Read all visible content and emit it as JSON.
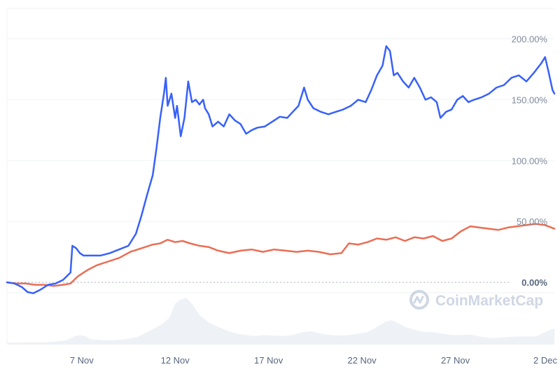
{
  "watermark": {
    "text": "CoinMarketCap",
    "icon": "coinmarketcap-logo-icon"
  },
  "colors": {
    "primary_series": "#3861fb",
    "compare_series": "#ea6e55",
    "volume_fill": "#eef1f6",
    "gridline": "#eff2f5",
    "zero_line": "#a6b0c3"
  },
  "chart_data": {
    "type": "line",
    "xlabel": "",
    "ylabel": "",
    "x_unit": "days",
    "x_ticks": [
      {
        "x": 6.0,
        "label": "7 Nov"
      },
      {
        "x": 11.0,
        "label": "12 Nov"
      },
      {
        "x": 16.0,
        "label": "17 Nov"
      },
      {
        "x": 21.0,
        "label": "22 Nov"
      },
      {
        "x": 26.0,
        "label": "27 Nov"
      },
      {
        "x": 31.0,
        "label": "2 Dec"
      }
    ],
    "y_ticks": [
      {
        "y": 0,
        "label": "0.00%"
      },
      {
        "y": 50,
        "label": "50.00%"
      },
      {
        "y": 100,
        "label": "100.00%"
      },
      {
        "y": 150,
        "label": "150.00%"
      },
      {
        "y": 200,
        "label": "200.00%"
      }
    ],
    "xlim": [
      2.0,
      31.3
    ],
    "ylim": [
      -50,
      225
    ],
    "grid": true,
    "y_axis_side": "right",
    "series": [
      {
        "color": "#3861fb",
        "points": [
          [
            2.0,
            0
          ],
          [
            2.4,
            -1
          ],
          [
            2.8,
            -4
          ],
          [
            3.1,
            -8
          ],
          [
            3.4,
            -9
          ],
          [
            3.8,
            -6
          ],
          [
            4.2,
            -2
          ],
          [
            4.6,
            -1
          ],
          [
            5.0,
            2
          ],
          [
            5.4,
            8
          ],
          [
            5.5,
            30
          ],
          [
            5.7,
            28
          ],
          [
            5.9,
            24
          ],
          [
            6.1,
            22
          ],
          [
            6.5,
            22
          ],
          [
            7.0,
            22
          ],
          [
            7.5,
            24
          ],
          [
            8.0,
            27
          ],
          [
            8.5,
            30
          ],
          [
            8.9,
            40
          ],
          [
            9.2,
            55
          ],
          [
            9.5,
            72
          ],
          [
            9.8,
            88
          ],
          [
            10.0,
            110
          ],
          [
            10.2,
            135
          ],
          [
            10.4,
            155
          ],
          [
            10.5,
            168
          ],
          [
            10.6,
            145
          ],
          [
            10.8,
            155
          ],
          [
            11.0,
            135
          ],
          [
            11.1,
            145
          ],
          [
            11.3,
            120
          ],
          [
            11.5,
            135
          ],
          [
            11.7,
            165
          ],
          [
            11.9,
            148
          ],
          [
            12.1,
            150
          ],
          [
            12.3,
            146
          ],
          [
            12.5,
            150
          ],
          [
            12.6,
            143
          ],
          [
            12.8,
            138
          ],
          [
            13.0,
            128
          ],
          [
            13.3,
            132
          ],
          [
            13.6,
            128
          ],
          [
            13.9,
            138
          ],
          [
            14.2,
            133
          ],
          [
            14.5,
            130
          ],
          [
            14.8,
            122
          ],
          [
            15.1,
            125
          ],
          [
            15.4,
            127
          ],
          [
            15.8,
            128
          ],
          [
            16.2,
            132
          ],
          [
            16.6,
            136
          ],
          [
            17.0,
            135
          ],
          [
            17.3,
            140
          ],
          [
            17.6,
            145
          ],
          [
            17.9,
            160
          ],
          [
            18.1,
            150
          ],
          [
            18.4,
            143
          ],
          [
            18.8,
            140
          ],
          [
            19.2,
            138
          ],
          [
            19.6,
            140
          ],
          [
            20.0,
            142
          ],
          [
            20.4,
            145
          ],
          [
            20.8,
            150
          ],
          [
            21.2,
            148
          ],
          [
            21.5,
            158
          ],
          [
            21.8,
            170
          ],
          [
            22.1,
            178
          ],
          [
            22.3,
            194
          ],
          [
            22.5,
            190
          ],
          [
            22.7,
            170
          ],
          [
            22.9,
            172
          ],
          [
            23.2,
            165
          ],
          [
            23.5,
            160
          ],
          [
            23.8,
            168
          ],
          [
            24.1,
            160
          ],
          [
            24.4,
            150
          ],
          [
            24.7,
            152
          ],
          [
            25.0,
            148
          ],
          [
            25.2,
            135
          ],
          [
            25.5,
            140
          ],
          [
            25.8,
            142
          ],
          [
            26.1,
            150
          ],
          [
            26.4,
            153
          ],
          [
            26.7,
            148
          ],
          [
            27.0,
            150
          ],
          [
            27.4,
            152
          ],
          [
            27.8,
            155
          ],
          [
            28.2,
            160
          ],
          [
            28.6,
            162
          ],
          [
            29.0,
            168
          ],
          [
            29.4,
            170
          ],
          [
            29.8,
            165
          ],
          [
            30.2,
            172
          ],
          [
            30.6,
            180
          ],
          [
            30.8,
            185
          ],
          [
            31.0,
            172
          ],
          [
            31.2,
            158
          ],
          [
            31.3,
            155
          ]
        ]
      },
      {
        "color": "#ea6e55",
        "points": [
          [
            2.0,
            0
          ],
          [
            2.5,
            -1
          ],
          [
            3.0,
            -1
          ],
          [
            3.5,
            -2
          ],
          [
            4.0,
            -2
          ],
          [
            4.5,
            -3
          ],
          [
            5.0,
            -2
          ],
          [
            5.4,
            -1
          ],
          [
            5.8,
            5
          ],
          [
            6.3,
            10
          ],
          [
            6.8,
            14
          ],
          [
            7.4,
            17
          ],
          [
            8.0,
            20
          ],
          [
            8.6,
            25
          ],
          [
            9.2,
            28
          ],
          [
            9.8,
            31
          ],
          [
            10.2,
            32
          ],
          [
            10.6,
            35
          ],
          [
            11.0,
            33
          ],
          [
            11.4,
            34
          ],
          [
            11.8,
            32
          ],
          [
            12.3,
            30
          ],
          [
            12.8,
            29
          ],
          [
            13.3,
            26
          ],
          [
            13.9,
            24
          ],
          [
            14.5,
            26
          ],
          [
            15.1,
            27
          ],
          [
            15.7,
            25
          ],
          [
            16.3,
            27
          ],
          [
            16.9,
            26
          ],
          [
            17.5,
            25
          ],
          [
            18.1,
            26
          ],
          [
            18.7,
            25
          ],
          [
            19.3,
            23
          ],
          [
            19.9,
            24
          ],
          [
            20.3,
            32
          ],
          [
            20.8,
            31
          ],
          [
            21.3,
            33
          ],
          [
            21.8,
            36
          ],
          [
            22.3,
            35
          ],
          [
            22.8,
            37
          ],
          [
            23.3,
            34
          ],
          [
            23.8,
            37
          ],
          [
            24.3,
            36
          ],
          [
            24.8,
            38
          ],
          [
            25.3,
            34
          ],
          [
            25.8,
            36
          ],
          [
            26.3,
            42
          ],
          [
            26.8,
            46
          ],
          [
            27.3,
            45
          ],
          [
            27.8,
            44
          ],
          [
            28.3,
            43
          ],
          [
            28.8,
            45
          ],
          [
            29.3,
            46
          ],
          [
            29.8,
            47
          ],
          [
            30.3,
            48
          ],
          [
            30.8,
            47
          ],
          [
            31.3,
            44
          ]
        ]
      }
    ],
    "volume": [
      [
        2.0,
        4
      ],
      [
        2.5,
        4
      ],
      [
        3.0,
        5
      ],
      [
        3.5,
        5
      ],
      [
        4.0,
        5
      ],
      [
        4.5,
        6
      ],
      [
        5.0,
        8
      ],
      [
        5.3,
        11
      ],
      [
        5.6,
        17
      ],
      [
        5.9,
        20
      ],
      [
        6.2,
        17
      ],
      [
        6.5,
        11
      ],
      [
        7.0,
        10
      ],
      [
        7.5,
        9
      ],
      [
        8.0,
        10
      ],
      [
        8.5,
        12
      ],
      [
        9.0,
        16
      ],
      [
        9.5,
        26
      ],
      [
        10.0,
        36
      ],
      [
        10.4,
        46
      ],
      [
        10.7,
        57
      ],
      [
        11.0,
        86
      ],
      [
        11.3,
        95
      ],
      [
        11.6,
        98
      ],
      [
        11.9,
        86
      ],
      [
        12.3,
        63
      ],
      [
        12.8,
        46
      ],
      [
        13.3,
        37
      ],
      [
        13.8,
        29
      ],
      [
        14.3,
        23
      ],
      [
        14.8,
        20
      ],
      [
        15.3,
        18
      ],
      [
        15.8,
        20
      ],
      [
        16.3,
        19
      ],
      [
        16.8,
        18
      ],
      [
        17.3,
        20
      ],
      [
        17.8,
        26
      ],
      [
        18.3,
        28
      ],
      [
        18.8,
        23
      ],
      [
        19.3,
        20
      ],
      [
        19.8,
        19
      ],
      [
        20.3,
        20
      ],
      [
        20.8,
        23
      ],
      [
        21.3,
        26
      ],
      [
        21.8,
        37
      ],
      [
        22.3,
        49
      ],
      [
        22.6,
        51
      ],
      [
        22.9,
        46
      ],
      [
        23.3,
        37
      ],
      [
        23.8,
        31
      ],
      [
        24.3,
        27
      ],
      [
        24.8,
        26
      ],
      [
        25.3,
        23
      ],
      [
        25.8,
        20
      ],
      [
        26.3,
        20
      ],
      [
        26.8,
        21
      ],
      [
        27.3,
        17
      ],
      [
        27.8,
        14
      ],
      [
        28.3,
        14
      ],
      [
        28.8,
        16
      ],
      [
        29.3,
        17
      ],
      [
        29.8,
        17
      ],
      [
        30.3,
        17
      ],
      [
        30.8,
        26
      ],
      [
        31.1,
        31
      ],
      [
        31.3,
        33
      ]
    ]
  }
}
